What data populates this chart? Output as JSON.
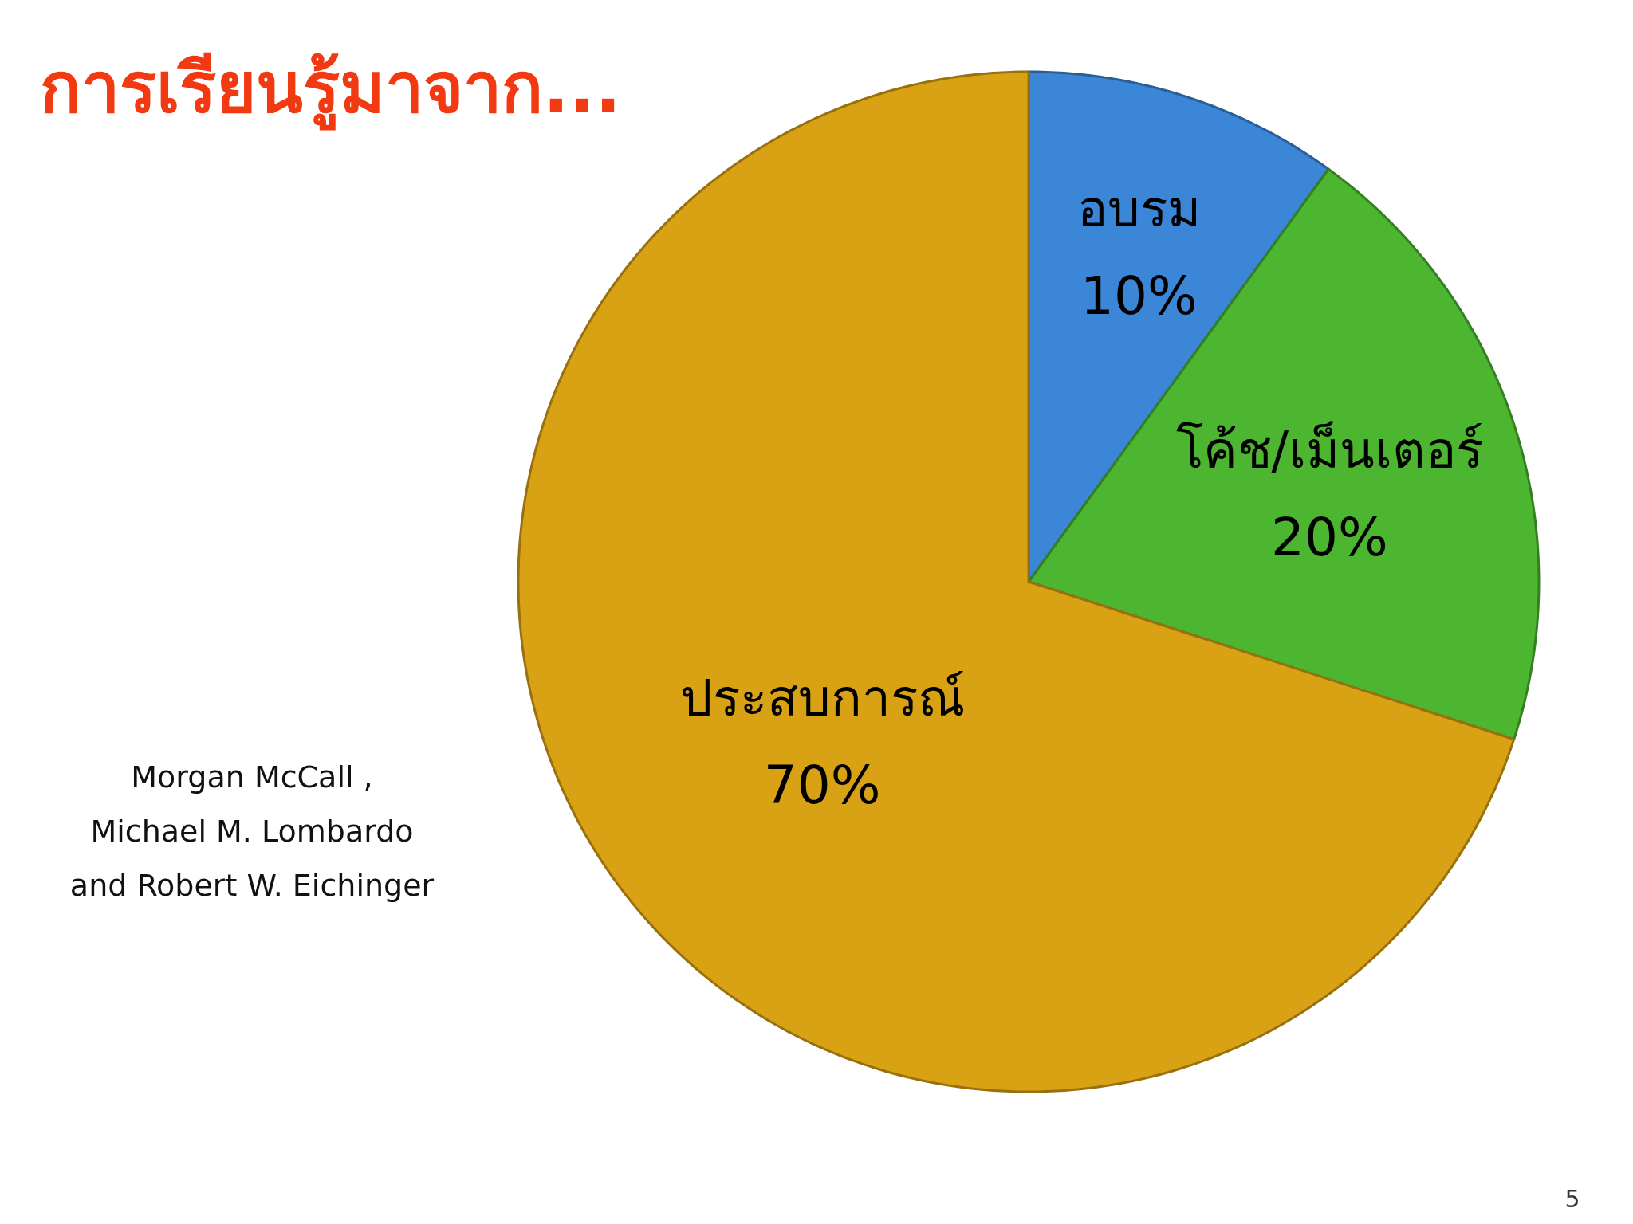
{
  "chart_data": {
    "type": "pie",
    "title": "การเรียนรู้มาจาก...",
    "categories": [
      "อบรม",
      "โค้ช/เม็นเตอร์",
      "ประสบการณ์"
    ],
    "values": [
      10,
      20,
      70
    ],
    "colors": [
      "#3b86d6",
      "#4cb630",
      "#d9a114"
    ],
    "value_labels": [
      "10%",
      "20%",
      "70%"
    ],
    "annotations": [
      "Morgan McCall ,\nMichael M. Lombardo\nand Robert W. Eichinger",
      "5"
    ]
  }
}
